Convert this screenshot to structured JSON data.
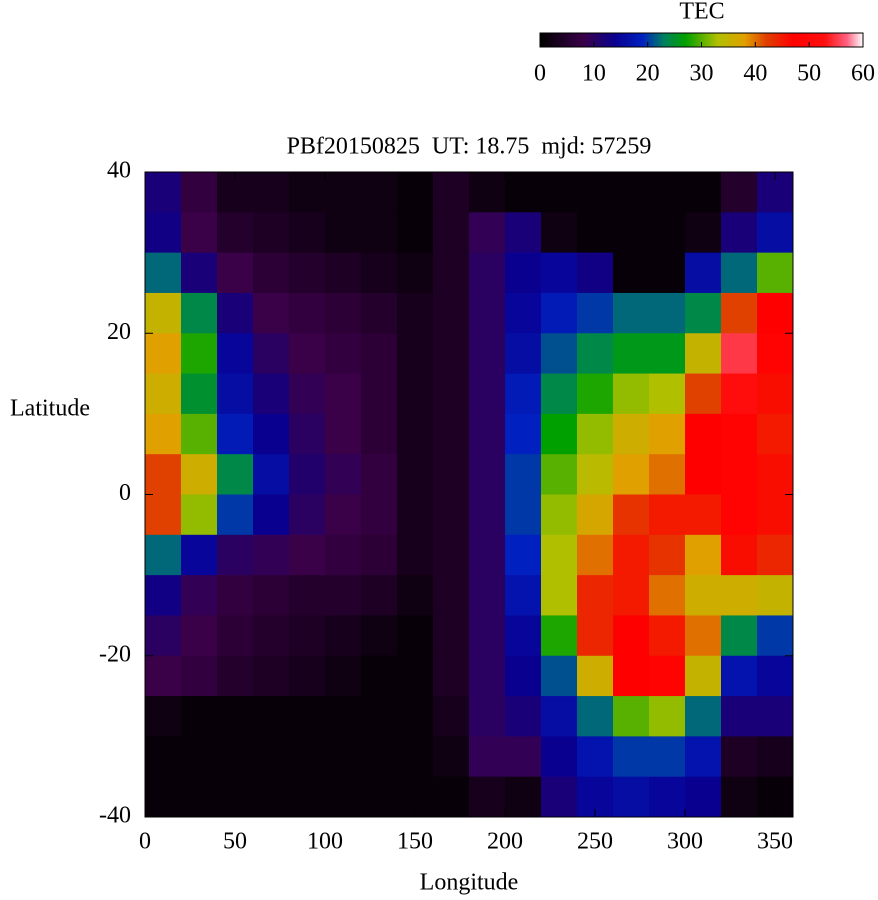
{
  "chart_data": {
    "type": "heatmap",
    "title": "PBf20150825  UT: 18.75  mjd: 57259",
    "xlabel": "Longitude",
    "ylabel": "Latitude",
    "colorbar_label": "TEC",
    "xlim": [
      0,
      360
    ],
    "ylim": [
      -40,
      40
    ],
    "xticks": [
      0,
      50,
      100,
      150,
      200,
      250,
      300,
      350
    ],
    "yticks": [
      40,
      20,
      0,
      -20,
      -40
    ],
    "cblim": [
      0,
      60
    ],
    "cbticks": [
      0,
      10,
      20,
      30,
      40,
      50,
      60
    ],
    "colorscale": [
      [
        0,
        "#000000"
      ],
      [
        8,
        "#3a0048"
      ],
      [
        14,
        "#0a0090"
      ],
      [
        19,
        "#0020c0"
      ],
      [
        23,
        "#008060"
      ],
      [
        27,
        "#00a000"
      ],
      [
        33,
        "#b0c000"
      ],
      [
        38,
        "#e0a000"
      ],
      [
        42,
        "#e04000"
      ],
      [
        47,
        "#ff0000"
      ],
      [
        53,
        "#ff1010"
      ],
      [
        57,
        "#ff6080"
      ],
      [
        60,
        "#ffffff"
      ]
    ],
    "x": [
      10,
      30,
      50,
      70,
      90,
      110,
      130,
      150,
      170,
      190,
      210,
      230,
      250,
      270,
      290,
      310,
      330,
      350
    ],
    "y": [
      37.5,
      32.5,
      27.5,
      22.5,
      17.5,
      12.5,
      7.5,
      2.5,
      -2.5,
      -7.5,
      -12.5,
      -17.5,
      -22.5,
      -27.5,
      -32.5,
      -37.5
    ],
    "z": [
      [
        12,
        7,
        3,
        3,
        2,
        2,
        2,
        1,
        4,
        2,
        1,
        1,
        1,
        1,
        1,
        1,
        5,
        12
      ],
      [
        13,
        8,
        5,
        4,
        3,
        2,
        2,
        1,
        4,
        9,
        12,
        2,
        1,
        1,
        1,
        2,
        12,
        16
      ],
      [
        22,
        12,
        8,
        6,
        5,
        4,
        3,
        2,
        4,
        10,
        14,
        15,
        13,
        1,
        1,
        16,
        22,
        30
      ],
      [
        35,
        24,
        12,
        8,
        7,
        6,
        5,
        3,
        4,
        10,
        15,
        18,
        20,
        22,
        22,
        24,
        42,
        47
      ],
      [
        38,
        28,
        15,
        10,
        8,
        7,
        6,
        3,
        4,
        10,
        16,
        21,
        24,
        26,
        26,
        35,
        55,
        48
      ],
      [
        36,
        25,
        16,
        12,
        9,
        8,
        6,
        3,
        4,
        10,
        18,
        24,
        28,
        32,
        33,
        42,
        52,
        46
      ],
      [
        38,
        30,
        18,
        14,
        10,
        8,
        6,
        3,
        4,
        10,
        19,
        27,
        32,
        36,
        38,
        47,
        48,
        45
      ],
      [
        42,
        36,
        24,
        16,
        11,
        9,
        7,
        3,
        4,
        10,
        20,
        30,
        34,
        38,
        40,
        47,
        48,
        46
      ],
      [
        42,
        32,
        20,
        14,
        10,
        8,
        7,
        3,
        4,
        10,
        20,
        32,
        37,
        43,
        45,
        45,
        48,
        46
      ],
      [
        22,
        15,
        10,
        9,
        8,
        7,
        6,
        3,
        4,
        10,
        19,
        33,
        40,
        45,
        43,
        38,
        46,
        44
      ],
      [
        13,
        9,
        7,
        6,
        5,
        5,
        4,
        2,
        4,
        10,
        17,
        33,
        44,
        45,
        40,
        36,
        36,
        35
      ],
      [
        10,
        8,
        6,
        5,
        4,
        3,
        2,
        1,
        4,
        10,
        15,
        28,
        44,
        47,
        45,
        40,
        24,
        20
      ],
      [
        8,
        7,
        5,
        4,
        3,
        2,
        1,
        1,
        4,
        10,
        14,
        21,
        36,
        47,
        48,
        35,
        17,
        15
      ],
      [
        2,
        1,
        1,
        1,
        1,
        1,
        1,
        1,
        3,
        10,
        12,
        16,
        22,
        30,
        32,
        22,
        12,
        12
      ],
      [
        1,
        1,
        1,
        1,
        1,
        1,
        1,
        1,
        2,
        9,
        9,
        14,
        17,
        20,
        20,
        17,
        4,
        3
      ],
      [
        1,
        1,
        1,
        1,
        1,
        1,
        1,
        1,
        1,
        3,
        2,
        12,
        15,
        16,
        15,
        14,
        2,
        1
      ]
    ]
  }
}
